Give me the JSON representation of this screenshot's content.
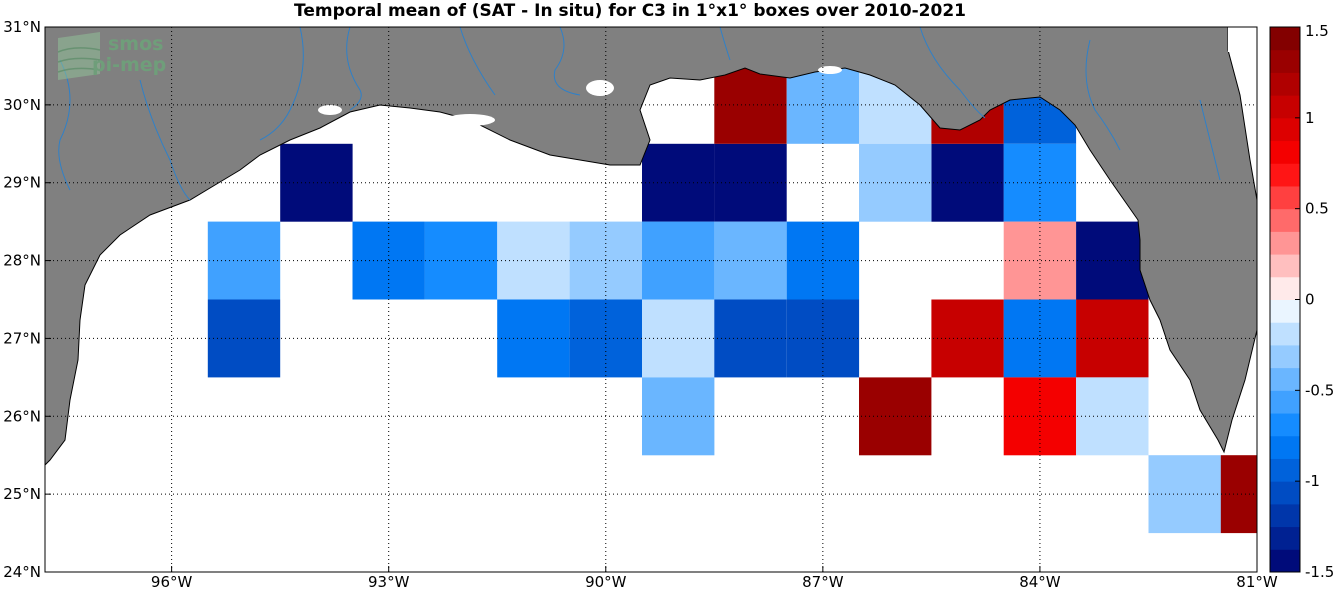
{
  "title": "Temporal mean of (SAT - In situ) for C3 in 1°x1° boxes over 2010-2021",
  "logo": {
    "line1": "smos",
    "line2": "pi-mep"
  },
  "colors": {
    "land": "#808080",
    "sea": "#ffffff",
    "river": "#2f80c8",
    "grid": "#000000"
  },
  "chart_data": {
    "type": "heatmap",
    "title": "Temporal mean of (SAT - In situ) for C3 in 1°x1° boxes over 2010-2021",
    "x_axis": {
      "range": [
        -97.75,
        -81
      ],
      "ticks": [
        -96,
        -93,
        -90,
        -87,
        -84,
        -81
      ],
      "tick_labels": [
        "96°W",
        "93°W",
        "90°W",
        "87°W",
        "84°W",
        "81°W"
      ]
    },
    "y_axis": {
      "range": [
        24,
        31
      ],
      "ticks": [
        24,
        25,
        26,
        27,
        28,
        29,
        30,
        31
      ],
      "tick_labels": [
        "24°N",
        "25°N",
        "26°N",
        "27°N",
        "28°N",
        "29°N",
        "30°N",
        "31°N"
      ]
    },
    "grid": true,
    "colorbar": {
      "range": [
        -1.5,
        1.5
      ],
      "ticks": [
        -1.5,
        -1,
        -0.5,
        0,
        0.5,
        1,
        1.5
      ],
      "tick_labels": [
        "-1.5",
        "-1",
        "-0.5",
        "0",
        "0.5",
        "1",
        "1.5"
      ]
    },
    "cells": [
      {
        "lon": -94,
        "lat": 29,
        "value": -1.45
      },
      {
        "lon": -89,
        "lat": 29,
        "value": -1.45
      },
      {
        "lon": -88,
        "lat": 29,
        "value": -1.45
      },
      {
        "lon": -85,
        "lat": 29,
        "value": -1.45
      },
      {
        "lon": -88,
        "lat": 30,
        "value": 1.25
      },
      {
        "lon": -87,
        "lat": 30,
        "value": -0.45
      },
      {
        "lon": -86,
        "lat": 30,
        "value": -0.15
      },
      {
        "lon": -85,
        "lat": 30,
        "value": 1.2
      },
      {
        "lon": -84,
        "lat": 30,
        "value": -0.9
      },
      {
        "lon": -86,
        "lat": 29,
        "value": -0.35
      },
      {
        "lon": -84,
        "lat": 29,
        "value": -0.7
      },
      {
        "lon": -95,
        "lat": 28,
        "value": -0.6
      },
      {
        "lon": -93,
        "lat": 28,
        "value": -0.8
      },
      {
        "lon": -92,
        "lat": 28,
        "value": -0.65
      },
      {
        "lon": -91,
        "lat": 28,
        "value": -0.25
      },
      {
        "lon": -90,
        "lat": 28,
        "value": -0.35
      },
      {
        "lon": -89,
        "lat": 28,
        "value": -0.6
      },
      {
        "lon": -88,
        "lat": 28,
        "value": -0.5
      },
      {
        "lon": -87,
        "lat": 28,
        "value": -0.85
      },
      {
        "lon": -84,
        "lat": 28,
        "value": 0.3
      },
      {
        "lon": -83,
        "lat": 28,
        "value": -1.45
      },
      {
        "lon": -95,
        "lat": 27,
        "value": -1.05
      },
      {
        "lon": -91,
        "lat": 27,
        "value": -0.8
      },
      {
        "lon": -90,
        "lat": 27,
        "value": -0.95
      },
      {
        "lon": -89,
        "lat": 27,
        "value": -0.25
      },
      {
        "lon": -88,
        "lat": 27,
        "value": -1.05
      },
      {
        "lon": -87,
        "lat": 27,
        "value": -1.05
      },
      {
        "lon": -85,
        "lat": 27,
        "value": 1.0
      },
      {
        "lon": -84,
        "lat": 27,
        "value": -0.8
      },
      {
        "lon": -83,
        "lat": 27,
        "value": 1.0
      },
      {
        "lon": -86,
        "lat": 26,
        "value": 1.25
      },
      {
        "lon": -89,
        "lat": 26,
        "value": -0.4
      },
      {
        "lon": -84,
        "lat": 26,
        "value": 0.85
      },
      {
        "lon": -83,
        "lat": 26,
        "value": -0.25
      },
      {
        "lon": -82,
        "lat": 25,
        "value": -0.3
      },
      {
        "lon": -81,
        "lat": 25,
        "value": 1.25
      }
    ]
  }
}
